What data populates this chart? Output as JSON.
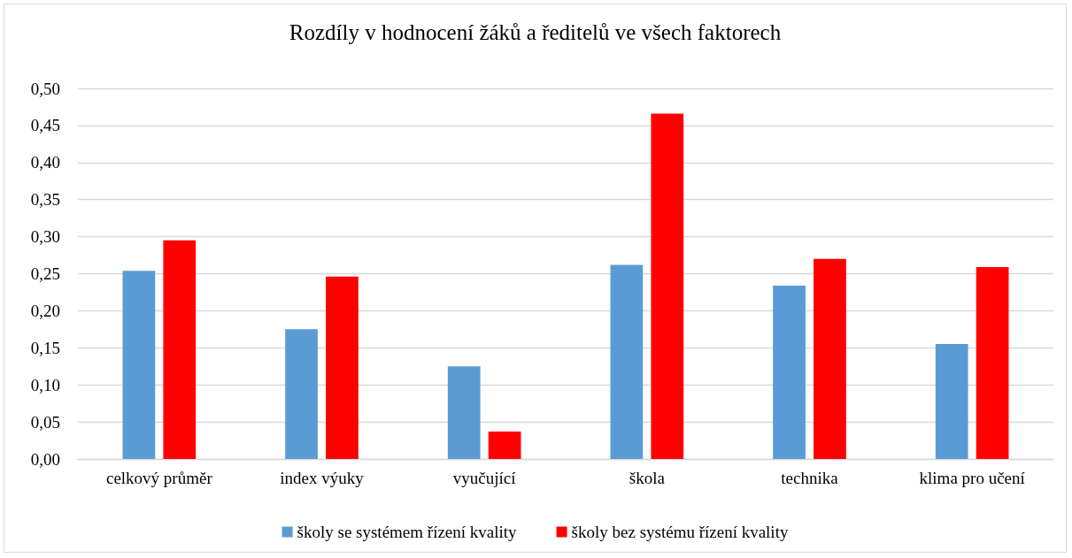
{
  "chart_data": {
    "type": "bar",
    "title": "Rozdíly v hodnocení žáků a ředitelů ve všech faktorech",
    "categories": [
      "celkový průměr",
      "index výuky",
      "vyučující",
      "škola",
      "technika",
      "klima pro učení"
    ],
    "series": [
      {
        "name": "školy se systémem řízení kvality",
        "color": "#5b9bd5",
        "values": [
          0.254,
          0.175,
          0.125,
          0.262,
          0.234,
          0.155
        ]
      },
      {
        "name": "školy bez systému řízení kvality",
        "color": "#ff0000",
        "values": [
          0.295,
          0.246,
          0.037,
          0.466,
          0.27,
          0.259
        ]
      }
    ],
    "ylim": [
      0,
      0.5
    ],
    "yticks": [
      {
        "value": 0,
        "label": "0,00"
      },
      {
        "value": 0.05,
        "label": "0,05"
      },
      {
        "value": 0.1,
        "label": "0,10"
      },
      {
        "value": 0.15,
        "label": "0,15"
      },
      {
        "value": 0.2,
        "label": "0,20"
      },
      {
        "value": 0.25,
        "label": "0,25"
      },
      {
        "value": 0.3,
        "label": "0,30"
      },
      {
        "value": 0.35,
        "label": "0,35"
      },
      {
        "value": 0.4,
        "label": "0,40"
      },
      {
        "value": 0.45,
        "label": "0,45"
      },
      {
        "value": 0.5,
        "label": "0,50"
      }
    ],
    "grid": "y",
    "legend": "bottom"
  }
}
